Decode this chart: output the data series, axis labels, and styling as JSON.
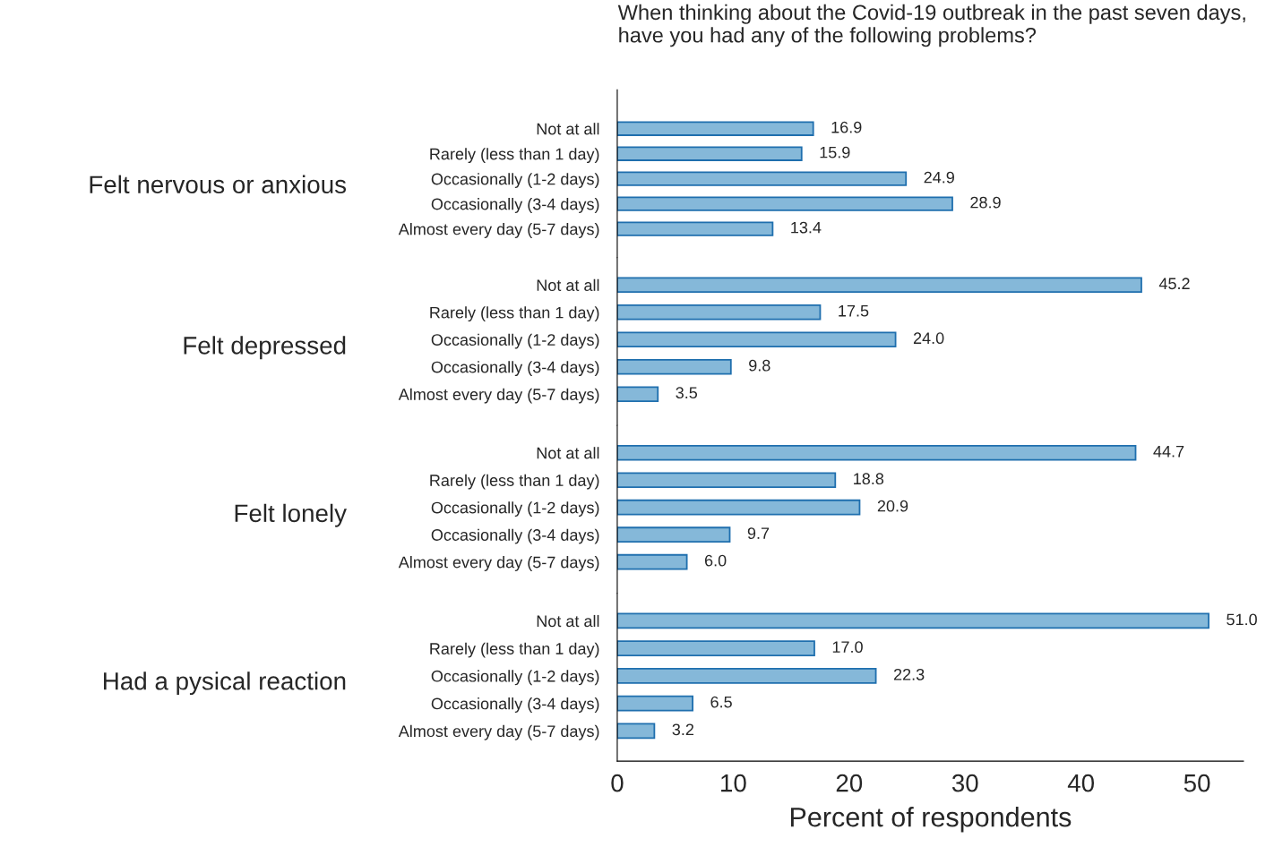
{
  "chart_data": [
    {
      "type": "bar",
      "orientation": "horizontal",
      "title": "When thinking about the Covid-19 outbreak in the past seven days, have you had any of the following problems?",
      "ylabel": "Felt nervous or anxious",
      "categories": [
        "Not at all",
        "Rarely (less than 1 day)",
        "Occasionally (1-2 days)",
        "Occasionally (3-4 days)",
        "Almost every day (5-7 days)"
      ],
      "values": [
        16.9,
        15.9,
        24.9,
        28.9,
        13.4
      ],
      "value_labels": [
        "16.9",
        "15.9",
        "24.9",
        "28.9",
        "13.4"
      ],
      "color": "#85b8d9",
      "xlim": [
        0,
        54
      ],
      "tick_labels": "y",
      "grid": false
    },
    {
      "type": "bar",
      "orientation": "horizontal",
      "ylabel": "Felt depressed",
      "categories": [
        "Not at all",
        "Rarely (less than 1 day)",
        "Occasionally (1-2 days)",
        "Occasionally (3-4 days)",
        "Almost every day (5-7 days)"
      ],
      "values": [
        45.2,
        17.5,
        24.0,
        9.8,
        3.5
      ],
      "value_labels": [
        "45.2",
        "17.5",
        "24.0",
        "9.8",
        "3.5"
      ],
      "color": "#85b8d9",
      "xlim": [
        0,
        54
      ],
      "tick_labels": "y",
      "grid": false
    },
    {
      "type": "bar",
      "orientation": "horizontal",
      "ylabel": "Felt lonely",
      "categories": [
        "Not at all",
        "Rarely (less than 1 day)",
        "Occasionally (1-2 days)",
        "Occasionally (3-4 days)",
        "Almost every day (5-7 days)"
      ],
      "values": [
        44.7,
        18.8,
        20.9,
        9.7,
        6.0
      ],
      "value_labels": [
        "44.7",
        "18.8",
        "20.9",
        "9.7",
        "6.0"
      ],
      "color": "#85b8d9",
      "xlim": [
        0,
        54
      ],
      "tick_labels": "y",
      "grid": false
    },
    {
      "type": "bar",
      "orientation": "horizontal",
      "ylabel": "Had a pysical reaction",
      "xlabel": "Percent of respondents",
      "categories": [
        "Not at all",
        "Rarely (less than 1 day)",
        "Occasionally (1-2 days)",
        "Occasionally (3-4 days)",
        "Almost every day (5-7 days)"
      ],
      "values": [
        51.0,
        17.0,
        22.3,
        6.5,
        3.2
      ],
      "value_labels": [
        "51.0",
        "17.0",
        "22.3",
        "6.5",
        "3.2"
      ],
      "color": "#85b8d9",
      "xlim": [
        0,
        54
      ],
      "xticks": [
        0,
        10,
        20,
        30,
        40,
        50
      ],
      "grid": false
    }
  ]
}
